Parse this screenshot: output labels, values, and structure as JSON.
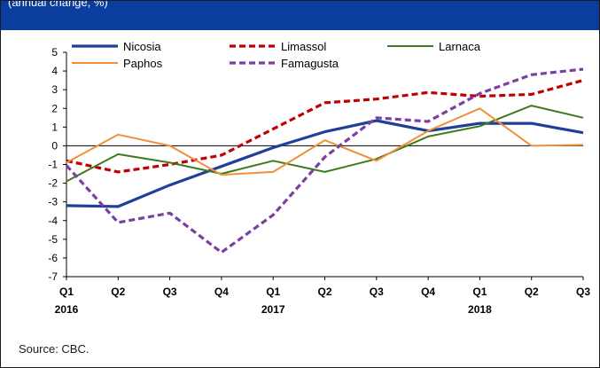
{
  "header": {
    "subtitle": "(annual change, %)"
  },
  "source": "Source: CBC.",
  "colors": {
    "header_bg": "#0b3d9e"
  },
  "chart_data": {
    "type": "line",
    "title": "",
    "xlabel": "",
    "ylabel": "",
    "ylim": [
      -7,
      5
    ],
    "yticks": [
      "5",
      "4",
      "3",
      "2",
      "1",
      "0",
      "-1",
      "-2",
      "-3",
      "-4",
      "-5",
      "-6",
      "-7"
    ],
    "categories": [
      "Q1",
      "Q2",
      "Q3",
      "Q4",
      "Q1",
      "Q2",
      "Q3",
      "Q4",
      "Q1",
      "Q2",
      "Q3"
    ],
    "years": [
      {
        "label": "2016",
        "index": 0
      },
      {
        "label": "2017",
        "index": 4
      },
      {
        "label": "2018",
        "index": 8
      }
    ],
    "legend_position": "top",
    "series": [
      {
        "name": "Nicosia",
        "color": "#1f3f99",
        "dash": "solid",
        "width": 3.2,
        "values": [
          -3.2,
          -3.25,
          -2.1,
          -1.1,
          -0.1,
          0.75,
          1.35,
          0.8,
          1.2,
          1.2,
          0.7
        ]
      },
      {
        "name": "Limassol",
        "color": "#c00000",
        "dash": "dashed",
        "width": 3.2,
        "values": [
          -0.8,
          -1.4,
          -1.0,
          -0.5,
          0.9,
          2.3,
          2.5,
          2.85,
          2.65,
          2.75,
          3.5
        ]
      },
      {
        "name": "Larnaca",
        "color": "#3d7a1e",
        "dash": "solid",
        "width": 2,
        "values": [
          -1.9,
          -0.45,
          -0.9,
          -1.5,
          -0.8,
          -1.4,
          -0.7,
          0.5,
          1.05,
          2.15,
          1.5
        ]
      },
      {
        "name": "Paphos",
        "color": "#f0913a",
        "dash": "solid",
        "width": 2,
        "values": [
          -0.9,
          0.6,
          0.0,
          -1.55,
          -1.4,
          0.3,
          -0.8,
          0.8,
          2.0,
          0.0,
          0.05
        ]
      },
      {
        "name": "Famagusta",
        "color": "#7a3fa0",
        "dash": "dashed",
        "width": 3.2,
        "values": [
          -1.05,
          -4.1,
          -3.6,
          -5.7,
          -3.7,
          -0.6,
          1.5,
          1.3,
          2.8,
          3.8,
          4.1
        ]
      }
    ]
  }
}
